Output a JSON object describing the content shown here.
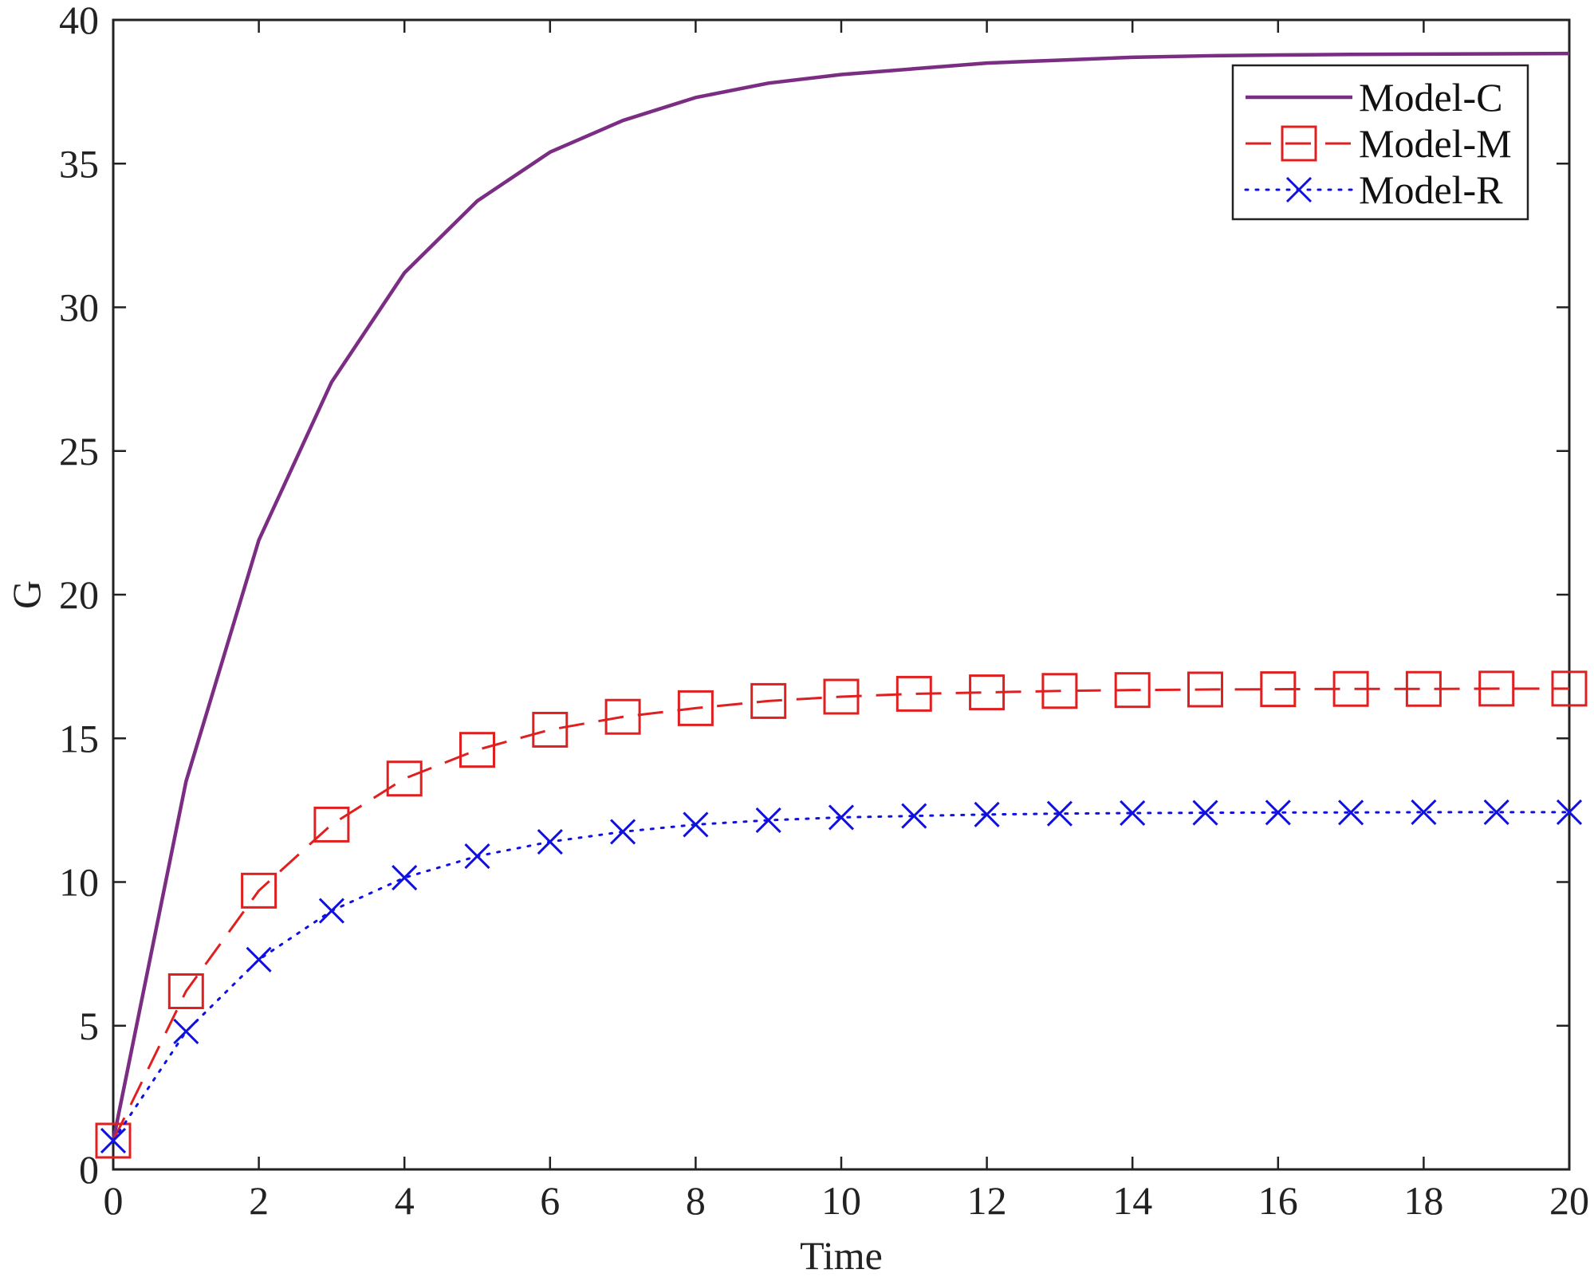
{
  "chart_data": {
    "type": "line",
    "title": "",
    "xlabel": "Time",
    "ylabel": "G",
    "xlim": [
      0,
      20
    ],
    "ylim": [
      0,
      40
    ],
    "xticks": [
      0,
      2,
      4,
      6,
      8,
      10,
      12,
      14,
      16,
      18,
      20
    ],
    "yticks": [
      0,
      5,
      10,
      15,
      20,
      25,
      30,
      35,
      40
    ],
    "grid": false,
    "legend_position": "top-right",
    "x": [
      0,
      1,
      2,
      3,
      4,
      5,
      6,
      7,
      8,
      9,
      10,
      11,
      12,
      13,
      14,
      15,
      16,
      17,
      18,
      19,
      20
    ],
    "series": [
      {
        "name": "Model-C",
        "color": "#7b2d83",
        "line_style": "solid",
        "marker": "none",
        "values": [
          1.0,
          13.5,
          21.9,
          27.4,
          31.2,
          33.7,
          35.4,
          36.5,
          37.3,
          37.8,
          38.1,
          38.3,
          38.5,
          38.6,
          38.7,
          38.75,
          38.78,
          38.8,
          38.81,
          38.82,
          38.83
        ]
      },
      {
        "name": "Model-M",
        "color": "#e02020",
        "line_style": "dashed",
        "marker": "square",
        "values": [
          1.0,
          6.2,
          9.7,
          12.0,
          13.6,
          14.6,
          15.3,
          15.75,
          16.05,
          16.3,
          16.45,
          16.55,
          16.6,
          16.65,
          16.68,
          16.7,
          16.71,
          16.72,
          16.72,
          16.73,
          16.73
        ]
      },
      {
        "name": "Model-R",
        "color": "#1010e0",
        "line_style": "dotted",
        "marker": "x",
        "values": [
          1.0,
          4.8,
          7.3,
          9.0,
          10.15,
          10.9,
          11.4,
          11.75,
          12.0,
          12.15,
          12.25,
          12.3,
          12.35,
          12.38,
          12.4,
          12.41,
          12.42,
          12.42,
          12.43,
          12.43,
          12.43
        ]
      }
    ]
  }
}
